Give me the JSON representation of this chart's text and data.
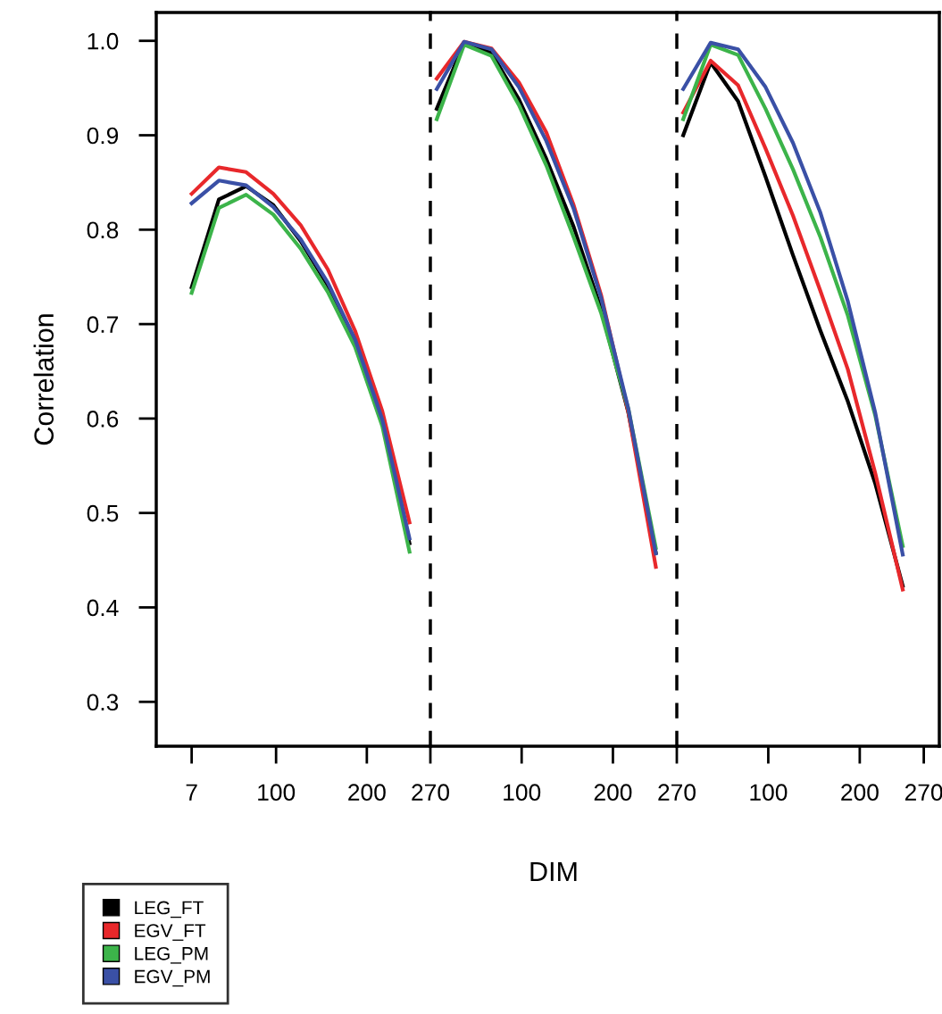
{
  "chart_data": [
    {
      "type": "line",
      "ylabel": "Correlation",
      "x": [
        7,
        37,
        67,
        97,
        127,
        157,
        187,
        217,
        247
      ],
      "series": [
        {
          "name": "LEG_FT",
          "color": "#000000",
          "values": [
            0.739,
            0.832,
            0.846,
            0.826,
            0.788,
            0.741,
            0.681,
            0.599,
            0.468
          ]
        },
        {
          "name": "EGV_FT",
          "color": "#e8282b",
          "values": [
            0.838,
            0.866,
            0.861,
            0.838,
            0.805,
            0.758,
            0.693,
            0.608,
            0.49
          ]
        },
        {
          "name": "LEG_PM",
          "color": "#3cb44a",
          "values": [
            0.733,
            0.823,
            0.837,
            0.816,
            0.78,
            0.734,
            0.676,
            0.592,
            0.459
          ]
        },
        {
          "name": "EGV_PM",
          "color": "#3a50a6",
          "values": [
            0.828,
            0.852,
            0.847,
            0.824,
            0.79,
            0.744,
            0.684,
            0.599,
            0.473
          ]
        }
      ],
      "xlim": [
        -32,
        270
      ],
      "xticks": [
        7,
        100,
        200,
        270
      ],
      "ylim": [
        0.253,
        1.03
      ],
      "yticks": [
        0.3,
        0.4,
        0.5,
        0.6,
        0.7,
        0.8,
        0.9,
        {
          "value": 1.0,
          "label": "1.0"
        }
      ],
      "ref_lines": [
        {
          "axis": "x",
          "value": 270,
          "color": "#000000",
          "line_style": "dashed"
        }
      ],
      "grid": false,
      "legend": "bottom left",
      "marker": "none",
      "line_style": "solid"
    },
    {
      "type": "line",
      "xlabel": "DIM",
      "x": [
        7,
        37,
        67,
        97,
        127,
        157,
        187,
        217,
        247
      ],
      "series": [
        {
          "color": "#000000",
          "values": [
            0.928,
            0.998,
            0.987,
            0.938,
            0.875,
            0.803,
            0.716,
            0.606,
            0.458
          ]
        },
        {
          "color": "#e8282b",
          "values": [
            0.96,
            0.999,
            0.992,
            0.956,
            0.903,
            0.826,
            0.731,
            0.606,
            0.443
          ]
        },
        {
          "color": "#3cb44a",
          "values": [
            0.917,
            0.996,
            0.984,
            0.932,
            0.868,
            0.792,
            0.712,
            0.61,
            0.463
          ]
        },
        {
          "color": "#3a50a6",
          "values": [
            0.949,
            0.999,
            0.991,
            0.951,
            0.894,
            0.822,
            0.728,
            0.61,
            0.457
          ]
        }
      ],
      "xlim": [
        0,
        270
      ],
      "xticks": [
        100,
        200,
        270
      ],
      "ylim": [
        0.253,
        1.03
      ],
      "tick_labels": "x",
      "ref_lines": [
        {
          "axis": "x",
          "value": 270,
          "color": "#000000",
          "line_style": "dashed"
        }
      ],
      "grid": false,
      "marker": "none",
      "line_style": "solid"
    },
    {
      "type": "line",
      "x": [
        7,
        37,
        67,
        97,
        127,
        157,
        187,
        217,
        247
      ],
      "series": [
        {
          "color": "#000000",
          "values": [
            0.9,
            0.977,
            0.936,
            0.856,
            0.773,
            0.693,
            0.618,
            0.531,
            0.423
          ]
        },
        {
          "color": "#e8282b",
          "values": [
            0.924,
            0.979,
            0.953,
            0.886,
            0.815,
            0.735,
            0.652,
            0.542,
            0.419
          ]
        },
        {
          "color": "#3cb44a",
          "values": [
            0.917,
            0.996,
            0.985,
            0.928,
            0.864,
            0.792,
            0.709,
            0.603,
            0.465
          ]
        },
        {
          "color": "#3a50a6",
          "values": [
            0.949,
            0.998,
            0.991,
            0.951,
            0.892,
            0.818,
            0.724,
            0.606,
            0.456
          ]
        }
      ],
      "xlim": [
        0,
        287
      ],
      "xticks": [
        100,
        200,
        270
      ],
      "ylim": [
        0.253,
        1.03
      ],
      "tick_labels": "x",
      "grid": false,
      "marker": "none",
      "line_style": "solid"
    }
  ]
}
